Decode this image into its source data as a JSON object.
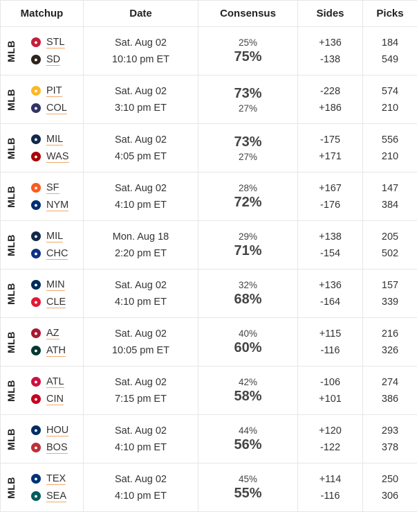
{
  "headers": {
    "matchup": "Matchup",
    "date": "Date",
    "consensus": "Consensus",
    "sides": "Sides",
    "picks": "Picks"
  },
  "rows": [
    {
      "league": "MLB",
      "teams": [
        {
          "abbr": "STL",
          "logo_color": "#c41e3a",
          "icon": "cardinals-logo-icon"
        },
        {
          "abbr": "SD",
          "logo_color": "#2f241d",
          "icon": "padres-logo-icon"
        }
      ],
      "date": "Sat. Aug 02",
      "time": "10:10 pm ET",
      "pct": [
        "25%",
        "75%"
      ],
      "big": 1,
      "sides": [
        "+136",
        "-138"
      ],
      "picks": [
        "184",
        "549"
      ]
    },
    {
      "league": "MLB",
      "teams": [
        {
          "abbr": "PIT",
          "logo_color": "#fdb827",
          "icon": "pirates-logo-icon"
        },
        {
          "abbr": "COL",
          "logo_color": "#333366",
          "icon": "rockies-logo-icon"
        }
      ],
      "date": "Sat. Aug 02",
      "time": "3:10 pm ET",
      "pct": [
        "73%",
        "27%"
      ],
      "big": 0,
      "sides": [
        "-228",
        "+186"
      ],
      "picks": [
        "574",
        "210"
      ]
    },
    {
      "league": "MLB",
      "teams": [
        {
          "abbr": "MIL",
          "logo_color": "#12284b",
          "icon": "brewers-logo-icon"
        },
        {
          "abbr": "WAS",
          "logo_color": "#ab0003",
          "icon": "nationals-logo-icon"
        }
      ],
      "date": "Sat. Aug 02",
      "time": "4:05 pm ET",
      "pct": [
        "73%",
        "27%"
      ],
      "big": 0,
      "sides": [
        "-175",
        "+171"
      ],
      "picks": [
        "556",
        "210"
      ]
    },
    {
      "league": "MLB",
      "teams": [
        {
          "abbr": "SF",
          "logo_color": "#fd5a1e",
          "icon": "giants-logo-icon"
        },
        {
          "abbr": "NYM",
          "logo_color": "#002d72",
          "icon": "mets-logo-icon"
        }
      ],
      "date": "Sat. Aug 02",
      "time": "4:10 pm ET",
      "pct": [
        "28%",
        "72%"
      ],
      "big": 1,
      "sides": [
        "+167",
        "-176"
      ],
      "picks": [
        "147",
        "384"
      ]
    },
    {
      "league": "MLB",
      "teams": [
        {
          "abbr": "MIL",
          "logo_color": "#12284b",
          "icon": "brewers-logo-icon"
        },
        {
          "abbr": "CHC",
          "logo_color": "#0e3386",
          "icon": "cubs-logo-icon"
        }
      ],
      "date": "Mon. Aug 18",
      "time": "2:20 pm ET",
      "pct": [
        "29%",
        "71%"
      ],
      "big": 1,
      "sides": [
        "+138",
        "-154"
      ],
      "picks": [
        "205",
        "502"
      ]
    },
    {
      "league": "MLB",
      "teams": [
        {
          "abbr": "MIN",
          "logo_color": "#002b5c",
          "icon": "twins-logo-icon"
        },
        {
          "abbr": "CLE",
          "logo_color": "#e31937",
          "icon": "guardians-logo-icon"
        }
      ],
      "date": "Sat. Aug 02",
      "time": "4:10 pm ET",
      "pct": [
        "32%",
        "68%"
      ],
      "big": 1,
      "sides": [
        "+136",
        "-164"
      ],
      "picks": [
        "157",
        "339"
      ]
    },
    {
      "league": "MLB",
      "teams": [
        {
          "abbr": "AZ",
          "logo_color": "#a71930",
          "icon": "diamondbacks-logo-icon"
        },
        {
          "abbr": "ATH",
          "logo_color": "#003831",
          "icon": "athletics-logo-icon"
        }
      ],
      "date": "Sat. Aug 02",
      "time": "10:05 pm ET",
      "pct": [
        "40%",
        "60%"
      ],
      "big": 1,
      "sides": [
        "+115",
        "-116"
      ],
      "picks": [
        "216",
        "326"
      ]
    },
    {
      "league": "MLB",
      "teams": [
        {
          "abbr": "ATL",
          "logo_color": "#ce1141",
          "icon": "braves-logo-icon"
        },
        {
          "abbr": "CIN",
          "logo_color": "#c6011f",
          "icon": "reds-logo-icon"
        }
      ],
      "date": "Sat. Aug 02",
      "time": "7:15 pm ET",
      "pct": [
        "42%",
        "58%"
      ],
      "big": 1,
      "sides": [
        "-106",
        "+101"
      ],
      "picks": [
        "274",
        "386"
      ]
    },
    {
      "league": "MLB",
      "teams": [
        {
          "abbr": "HOU",
          "logo_color": "#002d62",
          "icon": "astros-logo-icon"
        },
        {
          "abbr": "BOS",
          "logo_color": "#bd3039",
          "icon": "redsox-logo-icon"
        }
      ],
      "date": "Sat. Aug 02",
      "time": "4:10 pm ET",
      "pct": [
        "44%",
        "56%"
      ],
      "big": 1,
      "sides": [
        "+120",
        "-122"
      ],
      "picks": [
        "293",
        "378"
      ]
    },
    {
      "league": "MLB",
      "teams": [
        {
          "abbr": "TEX",
          "logo_color": "#003278",
          "icon": "rangers-logo-icon"
        },
        {
          "abbr": "SEA",
          "logo_color": "#005c5c",
          "icon": "mariners-logo-icon"
        }
      ],
      "date": "Sat. Aug 02",
      "time": "4:10 pm ET",
      "pct": [
        "45%",
        "55%"
      ],
      "big": 1,
      "sides": [
        "+114",
        "-116"
      ],
      "picks": [
        "250",
        "306"
      ]
    }
  ]
}
